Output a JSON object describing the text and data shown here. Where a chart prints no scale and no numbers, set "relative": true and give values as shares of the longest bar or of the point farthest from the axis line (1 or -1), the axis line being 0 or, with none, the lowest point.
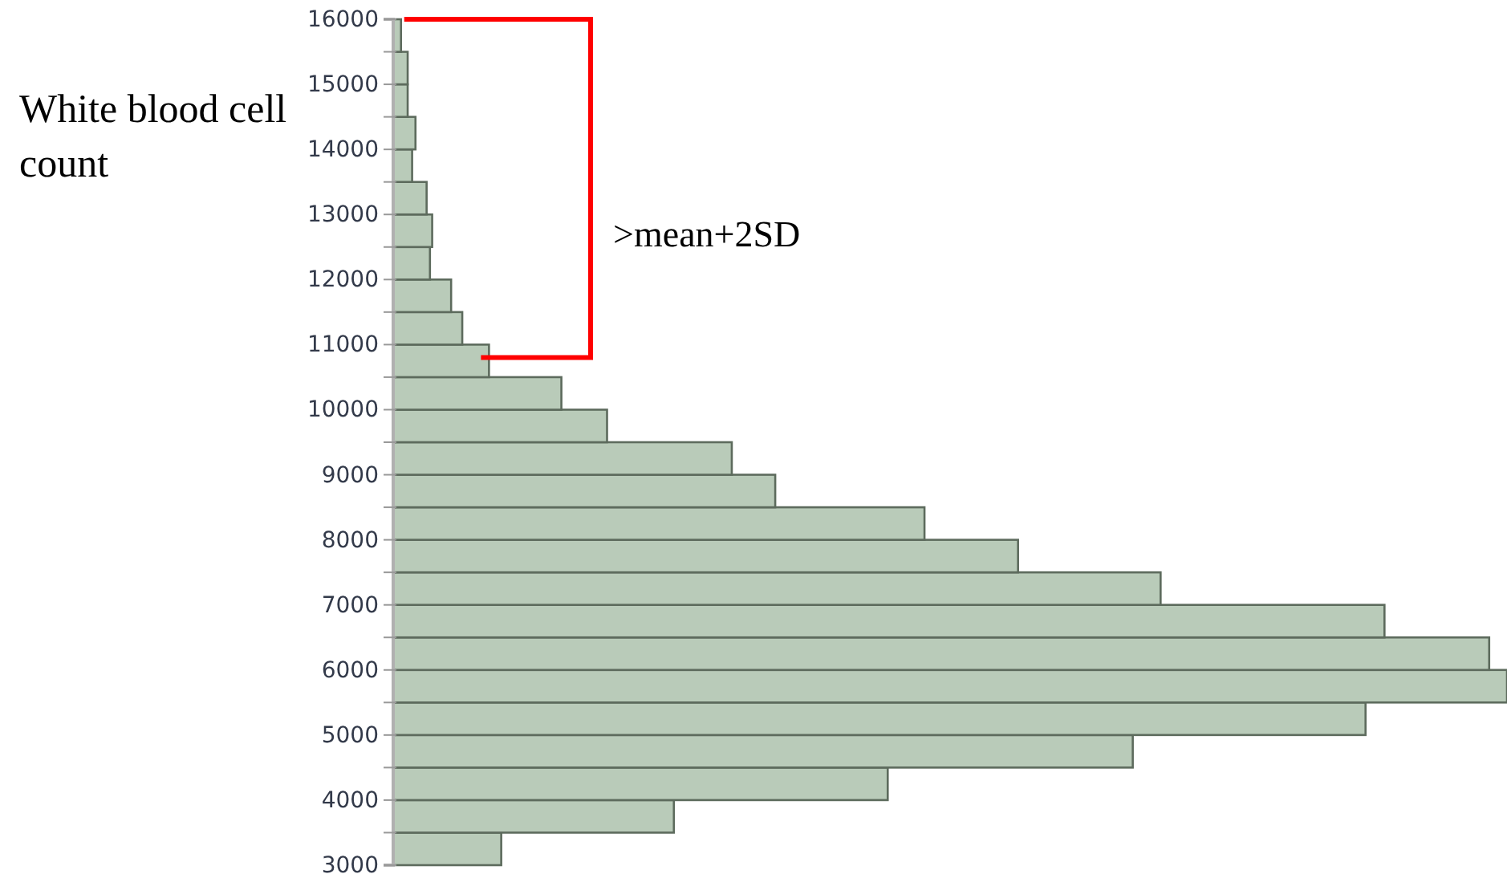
{
  "chart_data": {
    "type": "bar",
    "orientation": "horizontal",
    "relative": true,
    "ylabel": "White blood cell count",
    "x": [
      3250,
      3750,
      4250,
      4750,
      5250,
      5750,
      6250,
      6750,
      7250,
      7750,
      8250,
      8750,
      9250,
      9750,
      10250,
      10750,
      11250,
      11750,
      12250,
      12750,
      13250,
      13750,
      14250,
      14750,
      15250,
      15750
    ],
    "values": [
      0.097,
      0.252,
      0.444,
      0.664,
      0.873,
      1,
      0.984,
      0.89,
      0.689,
      0.561,
      0.477,
      0.343,
      0.304,
      0.192,
      0.151,
      0.086,
      0.062,
      0.052,
      0.033,
      0.035,
      0.03,
      0.017,
      0.02,
      0.013,
      0.013,
      0.007
    ],
    "color": "#b9cbb9",
    "ylim": [
      3000,
      16000
    ],
    "yticks": [
      3000,
      {
        "value": 3500,
        "label": null
      },
      4000,
      {
        "value": 4500,
        "label": null
      },
      5000,
      {
        "value": 5500,
        "label": null
      },
      6000,
      {
        "value": 6500,
        "label": null
      },
      7000,
      {
        "value": 7500,
        "label": null
      },
      8000,
      {
        "value": 8500,
        "label": null
      },
      9000,
      {
        "value": 9500,
        "label": null
      },
      10000,
      {
        "value": 10500,
        "label": null
      },
      11000,
      {
        "value": 11500,
        "label": null
      },
      12000,
      {
        "value": 12500,
        "label": null
      },
      13000,
      {
        "value": 13500,
        "label": null
      },
      14000,
      {
        "value": 14500,
        "label": null
      },
      15000,
      {
        "value": 15500,
        "label": null
      },
      16000
    ],
    "annotations": [
      ">mean+2SD"
    ]
  }
}
